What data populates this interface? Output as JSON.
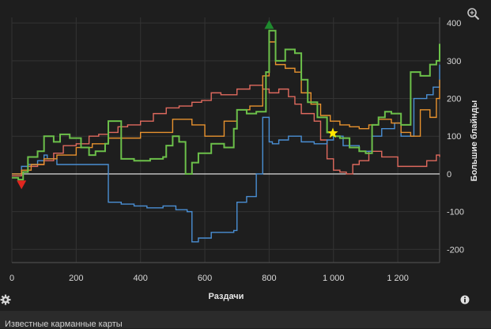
{
  "chart_data": {
    "type": "line",
    "xlabel": "Раздачи",
    "ylabel": "Большие блайнды",
    "xlim": [
      0,
      1330
    ],
    "ylim": [
      -235,
      415
    ],
    "x_ticks": [
      0,
      200,
      400,
      600,
      800,
      1000,
      1200
    ],
    "x_tick_labels": [
      "0",
      "200",
      "400",
      "600",
      "800",
      "1 000",
      "1 200"
    ],
    "y_ticks": [
      -200,
      -100,
      0,
      100,
      200,
      300,
      400
    ],
    "y_tick_labels": [
      "-200",
      "-100",
      "0",
      "100",
      "200",
      "300",
      "400"
    ],
    "grid": true,
    "series": [
      {
        "color": "#e06a5e",
        "x": [
          0,
          30,
          50,
          80,
          100,
          130,
          160,
          200,
          240,
          270,
          300,
          330,
          360,
          400,
          440,
          480,
          520,
          560,
          590,
          620,
          650,
          700,
          740,
          780,
          800,
          830,
          860,
          880,
          900,
          940,
          960,
          980,
          1000,
          1020,
          1040,
          1060,
          1080,
          1110,
          1150,
          1200,
          1250,
          1290,
          1320,
          1330
        ],
        "values": [
          -5,
          5,
          20,
          25,
          35,
          55,
          75,
          80,
          100,
          105,
          110,
          125,
          130,
          140,
          160,
          175,
          180,
          190,
          195,
          215,
          210,
          225,
          235,
          225,
          215,
          225,
          205,
          185,
          160,
          140,
          90,
          40,
          10,
          5,
          0,
          25,
          35,
          60,
          45,
          20,
          20,
          35,
          50,
          45
        ]
      },
      {
        "color": "#4a8fd4",
        "x": [
          0,
          30,
          50,
          80,
          100,
          110,
          140,
          300,
          340,
          380,
          420,
          470,
          510,
          545,
          560,
          580,
          620,
          690,
          700,
          730,
          760,
          780,
          800,
          810,
          830,
          860,
          900,
          940,
          980,
          1000,
          1030,
          1080,
          1120,
          1150,
          1190,
          1210,
          1250,
          1290,
          1310,
          1330
        ],
        "values": [
          0,
          20,
          25,
          35,
          50,
          40,
          25,
          -75,
          -80,
          -85,
          -90,
          -85,
          -95,
          -100,
          -180,
          -170,
          -155,
          -150,
          -75,
          -60,
          0,
          150,
          85,
          80,
          90,
          100,
          85,
          80,
          90,
          100,
          75,
          60,
          100,
          120,
          135,
          100,
          200,
          210,
          230,
          290
        ]
      },
      {
        "color": "#e8922e",
        "x": [
          0,
          30,
          60,
          100,
          140,
          200,
          250,
          300,
          400,
          500,
          560,
          600,
          660,
          700,
          740,
          780,
          800,
          820,
          850,
          880,
          900,
          930,
          960,
          990,
          1020,
          1050,
          1080,
          1110,
          1140,
          1180,
          1210,
          1240,
          1270,
          1300,
          1320,
          1330
        ],
        "values": [
          0,
          10,
          25,
          40,
          50,
          70,
          80,
          95,
          110,
          145,
          130,
          100,
          140,
          170,
          180,
          260,
          350,
          290,
          280,
          270,
          215,
          185,
          155,
          140,
          130,
          125,
          120,
          130,
          145,
          135,
          110,
          100,
          170,
          150,
          200,
          250
        ]
      },
      {
        "color": "#6cc04a",
        "x": [
          0,
          20,
          35,
          50,
          80,
          100,
          130,
          150,
          180,
          215,
          240,
          260,
          290,
          300,
          340,
          380,
          430,
          470,
          480,
          500,
          520,
          540,
          560,
          580,
          620,
          660,
          690,
          700,
          730,
          760,
          790,
          800,
          820,
          850,
          880,
          900,
          920,
          950,
          980,
          1000,
          1020,
          1050,
          1080,
          1100,
          1120,
          1140,
          1160,
          1180,
          1210,
          1240,
          1270,
          1300,
          1320,
          1330
        ],
        "values": [
          -10,
          -15,
          5,
          45,
          60,
          100,
          85,
          105,
          95,
          70,
          50,
          60,
          80,
          140,
          40,
          35,
          40,
          45,
          75,
          100,
          85,
          0,
          30,
          55,
          80,
          70,
          120,
          170,
          160,
          165,
          270,
          380,
          300,
          330,
          320,
          250,
          190,
          150,
          110,
          100,
          95,
          70,
          60,
          55,
          130,
          150,
          165,
          160,
          130,
          270,
          260,
          290,
          300,
          345
        ]
      }
    ],
    "markers": [
      {
        "type": "triangle-down",
        "color": "#e0261f",
        "x": 30,
        "y": -28
      },
      {
        "type": "triangle-up",
        "color": "#1e8a2e",
        "x": 800,
        "y": 395
      },
      {
        "type": "star",
        "color": "#ffe600",
        "x": 998,
        "y": 108
      }
    ]
  },
  "footer": {
    "label": "Известные карманные карты"
  },
  "icons": {
    "zoom": "zoom-icon",
    "settings": "gear-icon",
    "info": "info-icon"
  }
}
